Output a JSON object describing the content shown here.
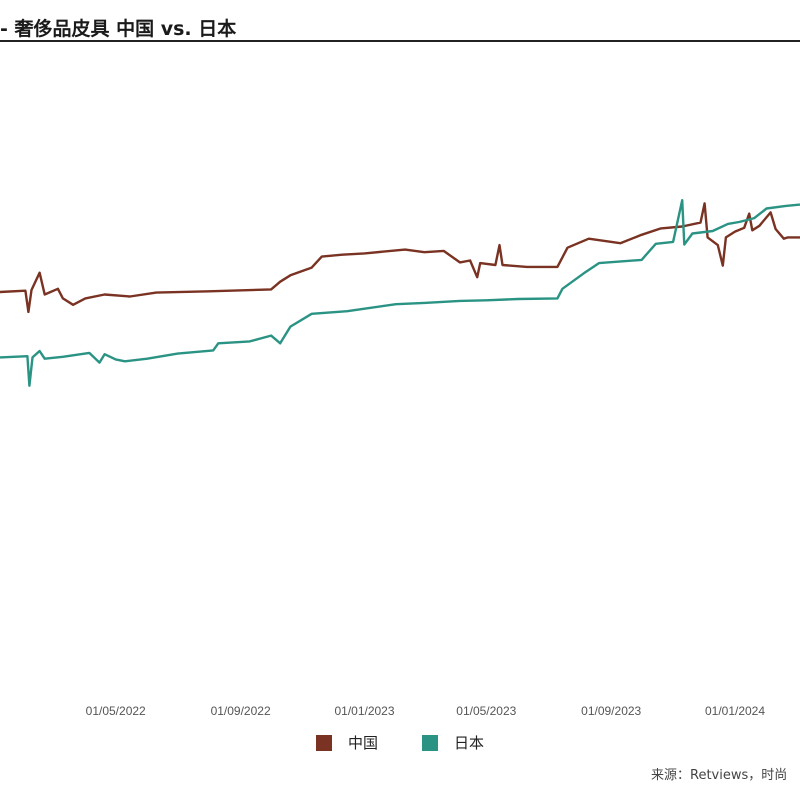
{
  "title": "- 奢侈品皮具 中国 vs. 日本",
  "source": "来源：Retviews，时尚",
  "colors": {
    "china": "#7a3222",
    "japan": "#2a9384",
    "axis_text": "#555555"
  },
  "chart_data": {
    "type": "line",
    "title": "- 奢侈品皮具 中国 vs. 日本",
    "xlabel": "",
    "ylabel": "",
    "x_tick_labels": [
      "01/05/2022",
      "01/09/2022",
      "01/01/2023",
      "01/05/2023",
      "01/09/2023",
      "01/01/2024"
    ],
    "x_range": [
      "2022-01-07",
      "2024-03-05"
    ],
    "y_range": [
      0,
      100
    ],
    "grid": false,
    "legend_position": "bottom-center",
    "series": [
      {
        "name": "中国",
        "color": "#7a3222",
        "points": [
          [
            "2022-01-07",
            62.0
          ],
          [
            "2022-02-01",
            62.2
          ],
          [
            "2022-02-04",
            58.9
          ],
          [
            "2022-02-07",
            62.3
          ],
          [
            "2022-02-15",
            65.0
          ],
          [
            "2022-02-20",
            61.6
          ],
          [
            "2022-03-05",
            62.5
          ],
          [
            "2022-03-10",
            61.0
          ],
          [
            "2022-03-20",
            60.0
          ],
          [
            "2022-04-01",
            61.0
          ],
          [
            "2022-04-20",
            61.6
          ],
          [
            "2022-05-15",
            61.3
          ],
          [
            "2022-06-10",
            61.9
          ],
          [
            "2022-08-01",
            62.1
          ],
          [
            "2022-10-01",
            62.4
          ],
          [
            "2022-10-10",
            63.6
          ],
          [
            "2022-10-20",
            64.6
          ],
          [
            "2022-11-10",
            65.8
          ],
          [
            "2022-11-20",
            67.5
          ],
          [
            "2022-12-10",
            67.8
          ],
          [
            "2023-01-01",
            68.0
          ],
          [
            "2023-02-10",
            68.6
          ],
          [
            "2023-03-01",
            68.2
          ],
          [
            "2023-03-20",
            68.4
          ],
          [
            "2023-04-05",
            66.6
          ],
          [
            "2023-04-15",
            66.9
          ],
          [
            "2023-04-22",
            64.3
          ],
          [
            "2023-04-25",
            66.5
          ],
          [
            "2023-05-10",
            66.2
          ],
          [
            "2023-05-14",
            69.3
          ],
          [
            "2023-05-17",
            66.2
          ],
          [
            "2023-06-10",
            65.9
          ],
          [
            "2023-07-10",
            65.9
          ],
          [
            "2023-07-20",
            68.9
          ],
          [
            "2023-08-10",
            70.3
          ],
          [
            "2023-09-10",
            69.6
          ],
          [
            "2023-10-01",
            70.9
          ],
          [
            "2023-10-20",
            71.9
          ],
          [
            "2023-11-10",
            72.2
          ],
          [
            "2023-11-28",
            72.8
          ],
          [
            "2023-12-02",
            75.8
          ],
          [
            "2023-12-05",
            70.5
          ],
          [
            "2023-12-15",
            69.3
          ],
          [
            "2023-12-20",
            66.1
          ],
          [
            "2023-12-23",
            70.5
          ],
          [
            "2024-01-01",
            71.4
          ],
          [
            "2024-01-10",
            72.0
          ],
          [
            "2024-01-15",
            74.2
          ],
          [
            "2024-01-18",
            71.6
          ],
          [
            "2024-01-25",
            72.3
          ],
          [
            "2024-02-05",
            74.4
          ],
          [
            "2024-02-10",
            71.8
          ],
          [
            "2024-02-18",
            70.3
          ],
          [
            "2024-02-22",
            70.5
          ],
          [
            "2024-03-05",
            70.5
          ]
        ]
      },
      {
        "name": "日本",
        "color": "#2a9384",
        "points": [
          [
            "2022-01-07",
            51.8
          ],
          [
            "2022-02-03",
            52.0
          ],
          [
            "2022-02-05",
            47.4
          ],
          [
            "2022-02-08",
            51.8
          ],
          [
            "2022-02-15",
            52.8
          ],
          [
            "2022-02-20",
            51.6
          ],
          [
            "2022-03-10",
            51.9
          ],
          [
            "2022-04-05",
            52.5
          ],
          [
            "2022-04-15",
            51.0
          ],
          [
            "2022-04-20",
            52.3
          ],
          [
            "2022-05-01",
            51.5
          ],
          [
            "2022-05-10",
            51.2
          ],
          [
            "2022-06-01",
            51.6
          ],
          [
            "2022-07-01",
            52.4
          ],
          [
            "2022-08-05",
            52.9
          ],
          [
            "2022-08-10",
            54.0
          ],
          [
            "2022-09-10",
            54.3
          ],
          [
            "2022-10-01",
            55.2
          ],
          [
            "2022-10-10",
            54.0
          ],
          [
            "2022-10-20",
            56.6
          ],
          [
            "2022-11-10",
            58.6
          ],
          [
            "2022-12-15",
            59.0
          ],
          [
            "2023-01-01",
            59.4
          ],
          [
            "2023-02-01",
            60.1
          ],
          [
            "2023-03-01",
            60.3
          ],
          [
            "2023-04-05",
            60.6
          ],
          [
            "2023-05-01",
            60.7
          ],
          [
            "2023-06-01",
            60.9
          ],
          [
            "2023-07-10",
            61.0
          ],
          [
            "2023-07-15",
            62.5
          ],
          [
            "2023-08-05",
            64.9
          ],
          [
            "2023-08-20",
            66.5
          ],
          [
            "2023-10-01",
            67.0
          ],
          [
            "2023-10-15",
            69.5
          ],
          [
            "2023-11-01",
            69.8
          ],
          [
            "2023-11-10",
            76.3
          ],
          [
            "2023-11-12",
            69.4
          ],
          [
            "2023-11-20",
            71.1
          ],
          [
            "2023-12-10",
            71.5
          ],
          [
            "2023-12-25",
            72.6
          ],
          [
            "2024-01-05",
            72.9
          ],
          [
            "2024-01-20",
            73.5
          ],
          [
            "2024-02-01",
            75.0
          ],
          [
            "2024-02-20",
            75.4
          ],
          [
            "2024-03-05",
            75.6
          ]
        ]
      }
    ]
  }
}
